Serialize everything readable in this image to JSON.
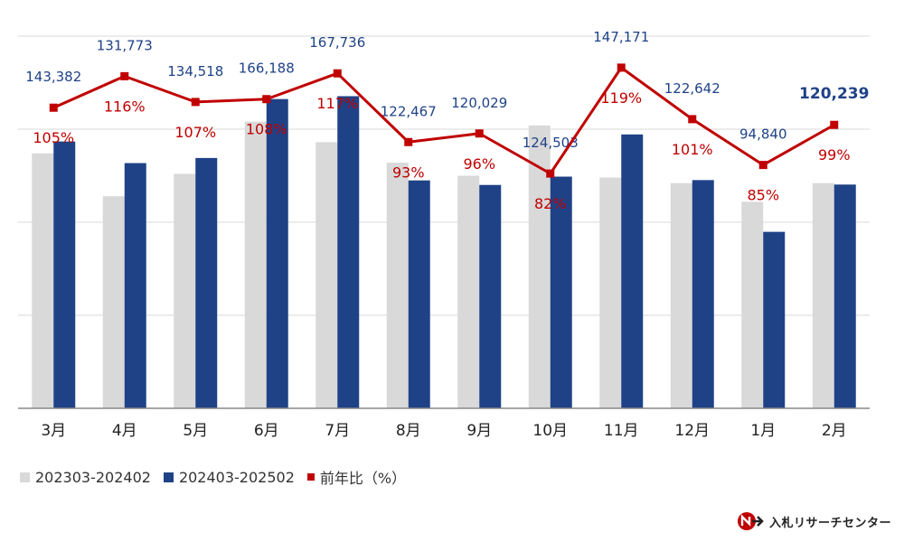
{
  "chart_data": {
    "type": "bar",
    "categories": [
      "3月",
      "4月",
      "5月",
      "6月",
      "7月",
      "8月",
      "9月",
      "10月",
      "11月",
      "12月",
      "1月",
      "2月"
    ],
    "series": [
      {
        "name": "202303-202402",
        "type": "bar",
        "color": "#d9d9d9",
        "values": [
          137000,
          114000,
          126000,
          154000,
          143000,
          132000,
          125000,
          152000,
          124000,
          121000,
          111000,
          121000
        ]
      },
      {
        "name": "202403-202502",
        "type": "bar",
        "color": "#1f4287",
        "values": [
          143382,
          131773,
          134518,
          166188,
          167736,
          122467,
          120029,
          124503,
          147171,
          122642,
          94840,
          120239
        ],
        "labels": [
          "143,382",
          "131,773",
          "134,518",
          "166,188",
          "167,736",
          "122,467",
          "120,029",
          "124,503",
          "147,171",
          "122,642",
          "94,840",
          "120,239"
        ]
      },
      {
        "name": "前年比（%）",
        "type": "line",
        "color": "#c00000",
        "values": [
          105,
          116,
          107,
          108,
          117,
          93,
          96,
          82,
          119,
          101,
          85,
          99
        ],
        "labels": [
          "105%",
          "116%",
          "107%",
          "108%",
          "117%",
          "93%",
          "96%",
          "82%",
          "119%",
          "101%",
          "85%",
          "99%"
        ]
      }
    ],
    "title": "",
    "xlabel": "",
    "ylabel": "",
    "ylim": [
      0,
      200000
    ],
    "ylim_right": [
      0,
      130
    ],
    "grid": true,
    "legend": "bottom-left"
  },
  "legend": {
    "items": [
      {
        "label": "202303-202402",
        "color": "#d9d9d9"
      },
      {
        "label": "202403-202502",
        "color": "#1f4287"
      },
      {
        "label": "前年比（%）",
        "color": "#c00000"
      }
    ]
  },
  "logo": {
    "text": "入札リサーチセンター",
    "mark_colors": [
      "#c00000",
      "#222222"
    ]
  }
}
